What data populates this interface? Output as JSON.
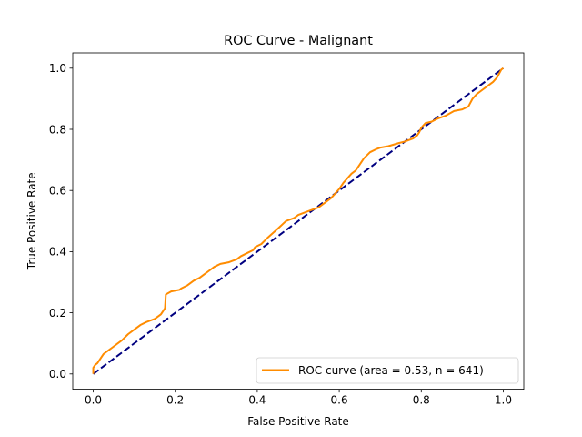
{
  "chart_data": {
    "type": "line",
    "title": "ROC Curve - Malignant",
    "xlabel": "False Positive Rate",
    "ylabel": "True Positive Rate",
    "xlim": [
      -0.05,
      1.05
    ],
    "ylim": [
      -0.05,
      1.05
    ],
    "xticks": [
      0.0,
      0.2,
      0.4,
      0.6,
      0.8,
      1.0
    ],
    "yticks": [
      0.0,
      0.2,
      0.4,
      0.6,
      0.8,
      1.0
    ],
    "xtick_labels": [
      "0.0",
      "0.2",
      "0.4",
      "0.6",
      "0.8",
      "1.0"
    ],
    "ytick_labels": [
      "0.0",
      "0.2",
      "0.4",
      "0.6",
      "0.8",
      "1.0"
    ],
    "grid": false,
    "legend_position": "lower-right",
    "series": [
      {
        "name": "ROC curve (area = 0.53, n = 641)",
        "color": "#ff8c00",
        "style": "solid",
        "x": [
          0.0,
          0.0,
          0.005,
          0.01,
          0.015,
          0.02,
          0.025,
          0.035,
          0.045,
          0.055,
          0.07,
          0.085,
          0.1,
          0.115,
          0.13,
          0.15,
          0.165,
          0.175,
          0.177,
          0.19,
          0.21,
          0.215,
          0.23,
          0.245,
          0.26,
          0.27,
          0.28,
          0.295,
          0.31,
          0.33,
          0.35,
          0.36,
          0.375,
          0.39,
          0.395,
          0.41,
          0.425,
          0.45,
          0.47,
          0.49,
          0.5,
          0.52,
          0.55,
          0.56,
          0.565,
          0.58,
          0.59,
          0.6,
          0.605,
          0.61,
          0.62,
          0.63,
          0.64,
          0.65,
          0.66,
          0.675,
          0.69,
          0.7,
          0.72,
          0.745,
          0.76,
          0.78,
          0.79,
          0.795,
          0.8,
          0.81,
          0.825,
          0.84,
          0.86,
          0.88,
          0.9,
          0.915,
          0.925,
          0.935,
          0.945,
          0.96,
          0.975,
          0.985,
          0.995,
          1.0
        ],
        "y": [
          0.0,
          0.02,
          0.03,
          0.035,
          0.045,
          0.055,
          0.065,
          0.075,
          0.085,
          0.095,
          0.11,
          0.13,
          0.145,
          0.16,
          0.17,
          0.18,
          0.195,
          0.215,
          0.26,
          0.27,
          0.275,
          0.28,
          0.29,
          0.305,
          0.315,
          0.325,
          0.335,
          0.35,
          0.36,
          0.365,
          0.375,
          0.385,
          0.395,
          0.405,
          0.415,
          0.425,
          0.445,
          0.475,
          0.5,
          0.51,
          0.52,
          0.53,
          0.545,
          0.555,
          0.56,
          0.575,
          0.59,
          0.605,
          0.615,
          0.625,
          0.64,
          0.655,
          0.665,
          0.685,
          0.705,
          0.725,
          0.735,
          0.74,
          0.745,
          0.755,
          0.76,
          0.77,
          0.78,
          0.79,
          0.805,
          0.82,
          0.825,
          0.835,
          0.845,
          0.86,
          0.865,
          0.875,
          0.9,
          0.915,
          0.925,
          0.94,
          0.955,
          0.97,
          0.995,
          1.0
        ]
      },
      {
        "color": "#000080",
        "style": "dashed",
        "x": [
          0.0,
          1.0
        ],
        "y": [
          0.0,
          1.0
        ]
      }
    ]
  }
}
